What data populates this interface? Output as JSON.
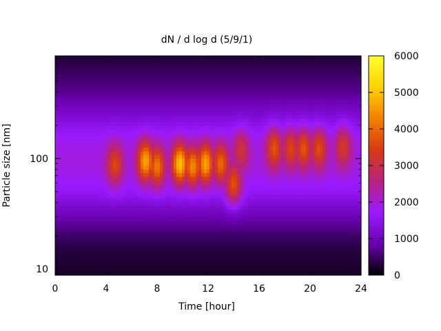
{
  "chart_data": {
    "type": "heatmap",
    "title": "dN / d log d (5/9/1)",
    "xlabel": "Time [hour]",
    "ylabel": "Particle size [nm]",
    "xlim": [
      0,
      24
    ],
    "ylim": [
      8.8,
      850
    ],
    "yscale": "log",
    "x_ticks": [
      0,
      4,
      8,
      12,
      16,
      20,
      24
    ],
    "y_ticks": [
      10,
      100
    ],
    "colorbar": {
      "range": [
        0,
        6000
      ],
      "ticks": [
        0,
        1000,
        2000,
        3000,
        4000,
        5000,
        6000
      ],
      "colors": [
        "#000000",
        "#6a00b0",
        "#9a1aff",
        "#b8227e",
        "#d83a14",
        "#f28000",
        "#ffd200",
        "#ffff33"
      ]
    },
    "background": {
      "peak_diameter_nm": 110,
      "peak_value": 1900,
      "description_values_nm": [
        9,
        15,
        20,
        30,
        50,
        80,
        110,
        150,
        250,
        400,
        800
      ],
      "values": [
        200,
        300,
        500,
        900,
        1600,
        1900,
        1900,
        1800,
        1200,
        700,
        300
      ]
    },
    "hotspots": [
      {
        "time": 4.7,
        "diameter_nm": 88,
        "value": 3600
      },
      {
        "time": 7.1,
        "diameter_nm": 95,
        "value": 4700
      },
      {
        "time": 8.0,
        "diameter_nm": 85,
        "value": 4200
      },
      {
        "time": 9.8,
        "diameter_nm": 90,
        "value": 5000
      },
      {
        "time": 10.8,
        "diameter_nm": 85,
        "value": 4400
      },
      {
        "time": 11.8,
        "diameter_nm": 90,
        "value": 4700
      },
      {
        "time": 13.0,
        "diameter_nm": 90,
        "value": 4000
      },
      {
        "time": 14.0,
        "diameter_nm": 58,
        "value": 3900
      },
      {
        "time": 14.6,
        "diameter_nm": 120,
        "value": 3200
      },
      {
        "time": 17.2,
        "diameter_nm": 125,
        "value": 3800
      },
      {
        "time": 18.5,
        "diameter_nm": 125,
        "value": 3600
      },
      {
        "time": 19.5,
        "diameter_nm": 125,
        "value": 3800
      },
      {
        "time": 20.7,
        "diameter_nm": 125,
        "value": 3700
      },
      {
        "time": 22.6,
        "diameter_nm": 130,
        "value": 3400
      }
    ]
  }
}
